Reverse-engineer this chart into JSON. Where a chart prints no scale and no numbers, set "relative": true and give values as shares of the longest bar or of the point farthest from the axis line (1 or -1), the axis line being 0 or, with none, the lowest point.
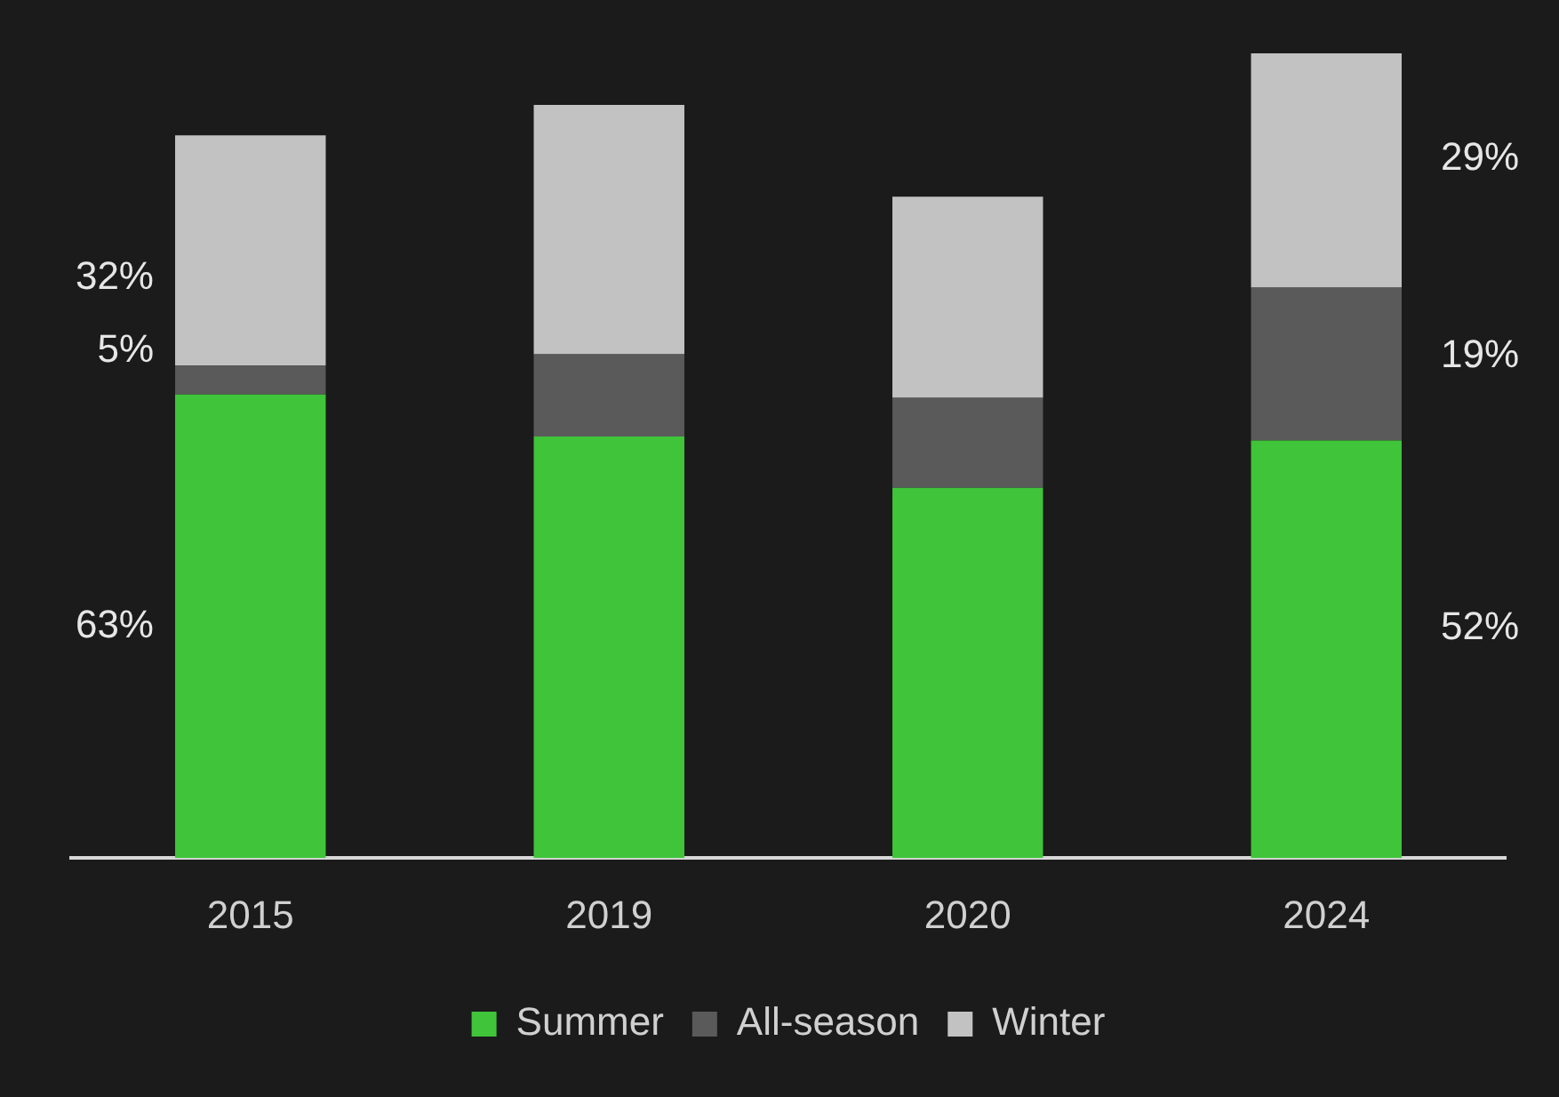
{
  "chart_data": {
    "type": "bar",
    "stacked": true,
    "relative": true,
    "categories": [
      "2015",
      "2019",
      "2020",
      "2024"
    ],
    "series": [
      {
        "name": "Summer",
        "color": "#3fc43a",
        "values": [
          0.576,
          0.524,
          0.46,
          0.519
        ]
      },
      {
        "name": "All-season",
        "color": "#5a5a5a",
        "values": [
          0.036,
          0.102,
          0.112,
          0.19
        ]
      },
      {
        "name": "Winter",
        "color": "#c2c2c2",
        "values": [
          0.286,
          0.31,
          0.25,
          0.291
        ]
      }
    ],
    "annotations": [
      "63%",
      "5%",
      "32%",
      "52%",
      "19%",
      "29%"
    ],
    "legend": "bottom"
  }
}
